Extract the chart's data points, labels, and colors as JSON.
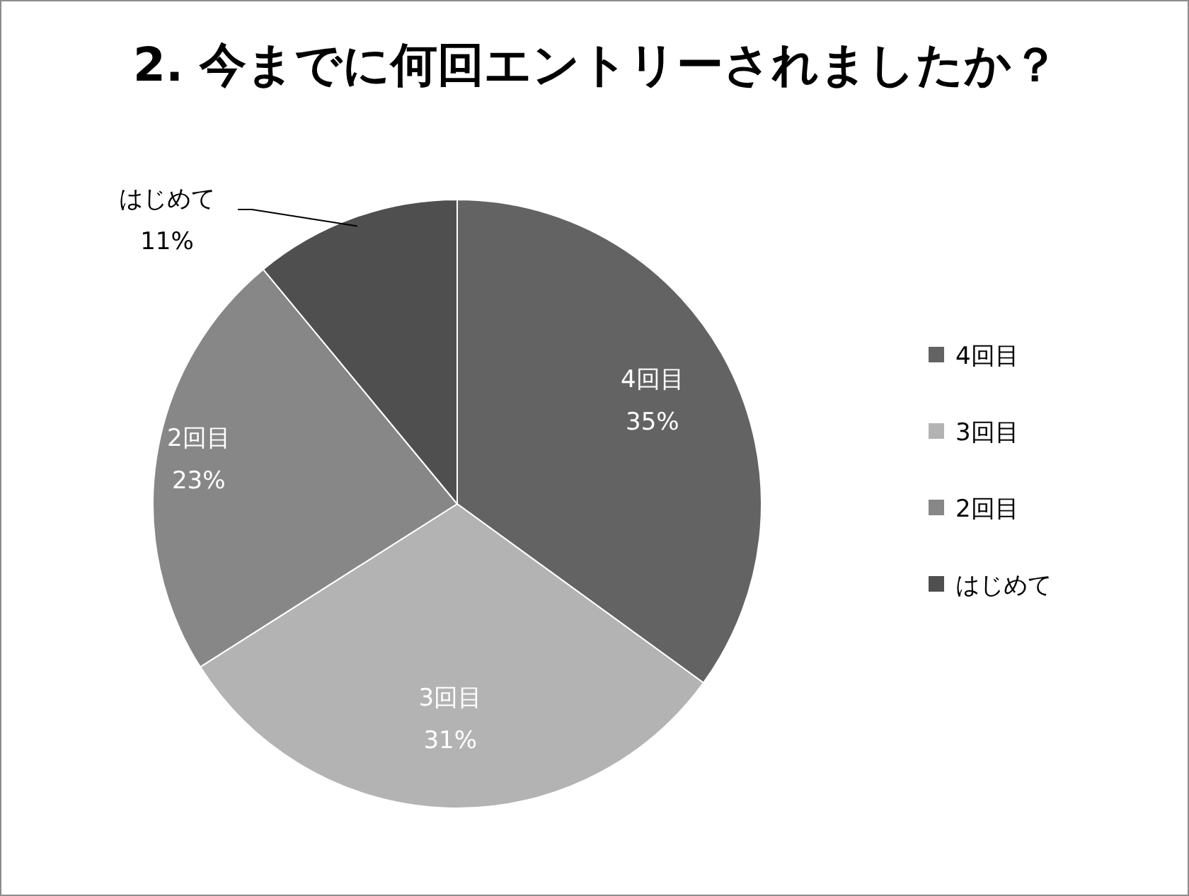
{
  "chart_data": {
    "type": "pie",
    "title": "2.   今までに何回エントリーされましたか？",
    "categories": [
      "4回目",
      "3回目",
      "2回目",
      "はじめて"
    ],
    "values": [
      35,
      31,
      23,
      11
    ],
    "value_labels": [
      "35%",
      "31%",
      "23%",
      "11%"
    ],
    "colors": [
      "#636363",
      "#b3b3b3",
      "#878787",
      "#4f4f4f"
    ],
    "legend": "right"
  }
}
